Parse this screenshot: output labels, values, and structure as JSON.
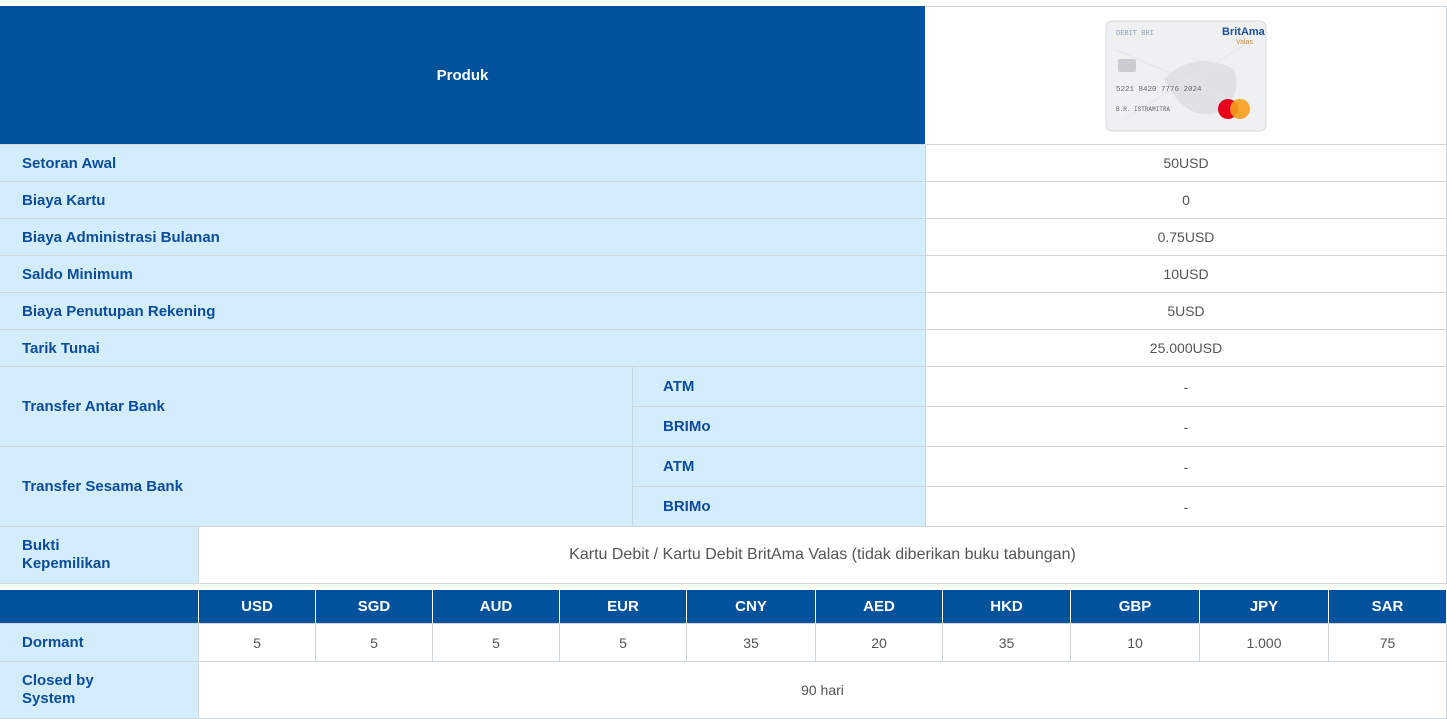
{
  "header": {
    "label": "Produk"
  },
  "card": {
    "label": "DEBIT BRI",
    "brand": "BritAma",
    "sub_brand": "Valas",
    "number": "5221 8420 7776 2024",
    "holder": "B.R. ISTRAMITRA"
  },
  "rows": [
    [
      "Setoran Awal",
      "50USD"
    ],
    [
      "Biaya Kartu",
      "0"
    ],
    [
      "Biaya Administrasi Bulanan",
      "0.75USD"
    ],
    [
      "Saldo Minimum",
      "10USD"
    ],
    [
      "Biaya Penutupan Rekening",
      "5USD"
    ],
    [
      "Tarik Tunai",
      "25.000USD"
    ]
  ],
  "transfers": [
    {
      "label": "Transfer Antar Bank",
      "channels": [
        [
          "ATM",
          "-"
        ],
        [
          "BRIMo",
          "-"
        ]
      ]
    },
    {
      "label": "Transfer Sesama Bank",
      "channels": [
        [
          "ATM",
          "-"
        ],
        [
          "BRIMo",
          "-"
        ]
      ]
    }
  ],
  "ownership": {
    "label": "Bukti Kepemilikan",
    "value": "Kartu Debit / Kartu Debit BritAma Valas (tidak diberikan buku tabungan)"
  },
  "currency_table": {
    "header": [
      "USD",
      "SGD",
      "AUD",
      "EUR",
      "CNY",
      "AED",
      "HKD",
      "GBP",
      "JPY",
      "SAR"
    ],
    "dormant": {
      "label": "Dormant",
      "values": [
        "5",
        "5",
        "5",
        "5",
        "35",
        "20",
        "35",
        "10",
        "1.000",
        "75"
      ]
    },
    "closed": {
      "label": "Closed by System",
      "value": "90 hari"
    }
  }
}
